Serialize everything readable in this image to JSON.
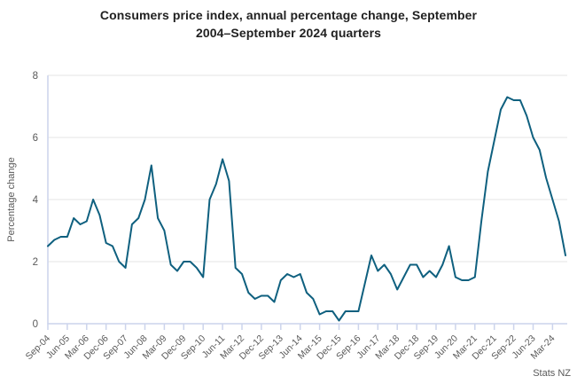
{
  "header": {
    "line1": "Consumers price index, annual percentage change, September",
    "line2": "2004–September 2024 quarters"
  },
  "chart_data": {
    "type": "line",
    "title": "Consumers price index, annual percentage change, September 2004–September 2024 quarters",
    "ylabel": "Percentage change",
    "xlabel": "",
    "source": "Stats NZ",
    "legend": "none",
    "grid": true,
    "x_tick_labels": [
      "Sep-04",
      "Jun-05",
      "Mar-06",
      "Dec-06",
      "Sep-07",
      "Jun-08",
      "Mar-09",
      "Dec-09",
      "Sep-10",
      "Jun-11",
      "Mar-12",
      "Dec-12",
      "Sep-13",
      "Jun-14",
      "Mar-15",
      "Dec-15",
      "Sep-16",
      "Jun-17",
      "Mar-18",
      "Dec-18",
      "Sep-19",
      "Jun-20",
      "Mar-21",
      "Dec-21",
      "Sep-22",
      "Jun-23",
      "Mar-24"
    ],
    "x_tick_every": 3,
    "values": [
      2.5,
      2.7,
      2.8,
      2.8,
      3.4,
      3.2,
      3.3,
      4.0,
      3.5,
      2.6,
      2.5,
      2.0,
      1.8,
      3.2,
      3.4,
      4.0,
      5.1,
      3.4,
      3.0,
      1.9,
      1.7,
      2.0,
      2.0,
      1.8,
      1.5,
      4.0,
      4.5,
      5.3,
      4.6,
      1.8,
      1.6,
      1.0,
      0.8,
      0.9,
      0.9,
      0.7,
      1.4,
      1.6,
      1.5,
      1.6,
      1.0,
      0.8,
      0.3,
      0.4,
      0.4,
      0.1,
      0.4,
      0.4,
      0.4,
      1.3,
      2.2,
      1.7,
      1.9,
      1.6,
      1.1,
      1.5,
      1.9,
      1.9,
      1.5,
      1.7,
      1.5,
      1.9,
      2.5,
      1.5,
      1.4,
      1.4,
      1.5,
      3.3,
      4.9,
      5.9,
      6.9,
      7.3,
      7.2,
      7.2,
      6.7,
      6.0,
      5.6,
      4.7,
      4.0,
      3.3,
      2.2
    ],
    "yticks": [
      0,
      2,
      4,
      6,
      8
    ],
    "ylim": [
      0,
      8
    ],
    "colors": {
      "line": "#0f607f",
      "grid": "#e5e5e5",
      "axis": "#ccd4ec",
      "title": "#212121",
      "tick_label": "#595959",
      "source": "#595959"
    }
  }
}
